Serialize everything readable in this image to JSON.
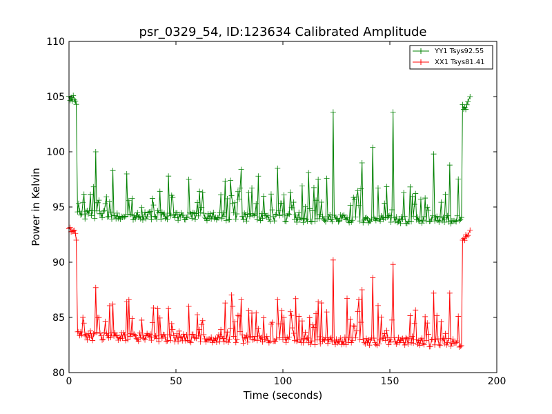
{
  "chart_data": {
    "type": "line",
    "title": "psr_0329_54, ID:123634 Calibrated Amplitude",
    "xlabel": "Time (seconds)",
    "ylabel": "Power in Kelvin",
    "xlim": [
      0,
      200
    ],
    "ylim": [
      80,
      110
    ],
    "xticks": [
      0,
      50,
      100,
      150,
      200
    ],
    "yticks": [
      80,
      85,
      90,
      95,
      100,
      105,
      110
    ],
    "xtick_labels": [
      "0",
      "50",
      "100",
      "150",
      "200"
    ],
    "ytick_labels": [
      "80",
      "85",
      "90",
      "95",
      "100",
      "105",
      "110"
    ],
    "grid": false,
    "legend_position": "top-right",
    "marker": "plus",
    "sample_interval_s": 0.5,
    "series": [
      {
        "name": "YY1 Tsys92.55",
        "color": "#008000",
        "segments": [
          {
            "t_start": 0,
            "t_end": 3,
            "baseline": 104.8
          },
          {
            "t_start": 3.5,
            "t_end": 183.5,
            "baseline_start": 94.3,
            "baseline_end": 93.8
          },
          {
            "t_start": 184,
            "t_end": 187,
            "baseline": 104.2
          }
        ],
        "peaks": [
          {
            "x": 3.4,
            "y": 104.3
          },
          {
            "x": 12.5,
            "y": 100.0
          },
          {
            "x": 20.5,
            "y": 98.3
          },
          {
            "x": 27,
            "y": 98.0
          },
          {
            "x": 46.5,
            "y": 97.8
          },
          {
            "x": 56,
            "y": 97.5
          },
          {
            "x": 80.5,
            "y": 98.4
          },
          {
            "x": 97.5,
            "y": 98.5
          },
          {
            "x": 112,
            "y": 98.1
          },
          {
            "x": 116.5,
            "y": 97.5
          },
          {
            "x": 123.5,
            "y": 103.6
          },
          {
            "x": 137,
            "y": 99.0
          },
          {
            "x": 142,
            "y": 100.4
          },
          {
            "x": 151.5,
            "y": 103.6
          },
          {
            "x": 170.5,
            "y": 99.8
          },
          {
            "x": 178,
            "y": 98.8
          },
          {
            "x": 187.5,
            "y": 105.0
          }
        ]
      },
      {
        "name": "XX1 Tsys81.41",
        "color": "#ff0000",
        "segments": [
          {
            "t_start": 0,
            "t_end": 3,
            "baseline": 92.8
          },
          {
            "t_start": 3.5,
            "t_end": 183.5,
            "baseline_start": 83.3,
            "baseline_end": 82.7
          },
          {
            "t_start": 184,
            "t_end": 187,
            "baseline": 92.2
          }
        ],
        "peaks": [
          {
            "x": 3.4,
            "y": 92.0
          },
          {
            "x": 12.5,
            "y": 87.7
          },
          {
            "x": 20.5,
            "y": 86.2
          },
          {
            "x": 27,
            "y": 86.4
          },
          {
            "x": 46.5,
            "y": 85.8
          },
          {
            "x": 56,
            "y": 86.0
          },
          {
            "x": 80.5,
            "y": 86.6
          },
          {
            "x": 97.5,
            "y": 86.6
          },
          {
            "x": 106,
            "y": 86.7
          },
          {
            "x": 116.5,
            "y": 86.4
          },
          {
            "x": 123.5,
            "y": 90.2
          },
          {
            "x": 137,
            "y": 87.5
          },
          {
            "x": 142,
            "y": 88.6
          },
          {
            "x": 151.5,
            "y": 89.8
          },
          {
            "x": 170.5,
            "y": 87.2
          },
          {
            "x": 178,
            "y": 87.2
          },
          {
            "x": 187.5,
            "y": 92.9
          }
        ]
      }
    ]
  }
}
